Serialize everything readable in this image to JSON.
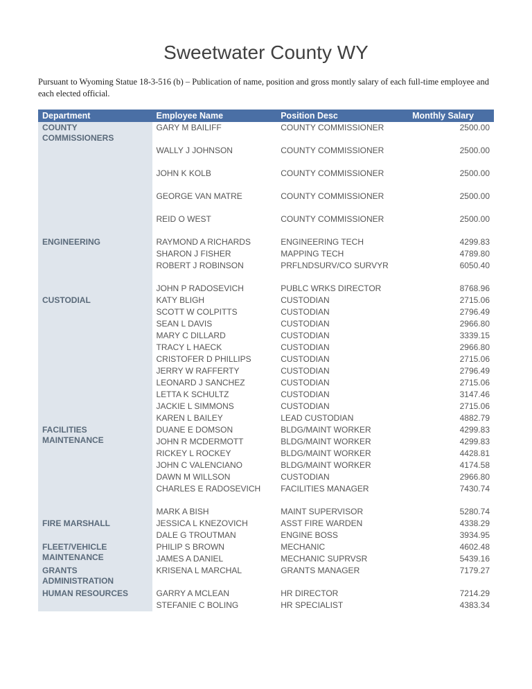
{
  "title": "Sweetwater County WY",
  "intro": "Pursuant to Wyoming Statue 18-3-516 (b) – Publication of name, position and gross montly salary of each full-time employee and each elected official.",
  "columns": [
    "Department",
    "Employee Name",
    "Position Desc",
    "Monthly Salary"
  ],
  "colors": {
    "header_bg": "#4a6fa5",
    "header_text": "#ffffff",
    "dept_bg": "#dfe5ec",
    "dept_text": "#5a6a7a",
    "body_text": "#555"
  },
  "rows": [
    {
      "dept": "COUNTY COMMISSIONERS",
      "name": "GARY M BAILIFF",
      "pos": "COUNTY COMMISSIONER",
      "sal": "2500.00",
      "deptspan": 10
    },
    {
      "spacer": true
    },
    {
      "name": "WALLY J JOHNSON",
      "pos": "COUNTY COMMISSIONER",
      "sal": "2500.00"
    },
    {
      "spacer": true
    },
    {
      "name": "JOHN K KOLB",
      "pos": "COUNTY COMMISSIONER",
      "sal": "2500.00"
    },
    {
      "spacer": true
    },
    {
      "name": "GEORGE  VAN MATRE",
      "pos": "COUNTY COMMISSIONER",
      "sal": "2500.00"
    },
    {
      "spacer": true
    },
    {
      "name": "REID O WEST",
      "pos": "COUNTY COMMISSIONER",
      "sal": "2500.00"
    },
    {
      "spacer": true
    },
    {
      "dept": "ENGINEERING",
      "name": "RAYMOND A RICHARDS",
      "pos": "ENGINEERING TECH",
      "sal": "4299.83",
      "deptspan": 4
    },
    {
      "name": "SHARON J FISHER",
      "pos": "MAPPING TECH",
      "sal": "4789.80"
    },
    {
      "name": "ROBERT J ROBINSON",
      "pos": "PRFLNDSURV/CO SURVYR",
      "sal": "6050.40"
    },
    {
      "spacer": true
    },
    {
      "dept": "",
      "name": "JOHN P RADOSEVICH",
      "pos": "PUBLC WRKS DIRECTOR",
      "sal": "8768.96",
      "deptspan": 1
    },
    {
      "dept": "CUSTODIAL",
      "name": "KATY  BLIGH",
      "pos": "CUSTODIAN",
      "sal": "2715.06",
      "deptspan": 11
    },
    {
      "name": "SCOTT W COLPITTS",
      "pos": "CUSTODIAN",
      "sal": "2796.49"
    },
    {
      "name": "SEAN L DAVIS",
      "pos": "CUSTODIAN",
      "sal": "2966.80"
    },
    {
      "name": "MARY C DILLARD",
      "pos": "CUSTODIAN",
      "sal": "3339.15"
    },
    {
      "name": "TRACY L HAECK",
      "pos": "CUSTODIAN",
      "sal": "2966.80"
    },
    {
      "name": "CRISTOFER D PHILLIPS",
      "pos": "CUSTODIAN",
      "sal": "2715.06"
    },
    {
      "name": "JERRY W RAFFERTY",
      "pos": "CUSTODIAN",
      "sal": "2796.49"
    },
    {
      "name": "LEONARD J SANCHEZ",
      "pos": "CUSTODIAN",
      "sal": "2715.06"
    },
    {
      "name": "LETTA K SCHULTZ",
      "pos": "CUSTODIAN",
      "sal": "3147.46"
    },
    {
      "name": "JACKIE L SIMMONS",
      "pos": "CUSTODIAN",
      "sal": "2715.06"
    },
    {
      "name": "KAREN L BAILEY",
      "pos": "LEAD CUSTODIAN",
      "sal": "4882.79"
    },
    {
      "dept": "FACILITIES MAINTENANCE",
      "name": "DUANE E DOMSON",
      "pos": "BLDG/MAINT WORKER",
      "sal": "4299.83",
      "deptspan": 8
    },
    {
      "name": "JOHN R MCDERMOTT",
      "pos": "BLDG/MAINT WORKER",
      "sal": "4299.83"
    },
    {
      "name": "RICKEY L ROCKEY",
      "pos": "BLDG/MAINT WORKER",
      "sal": "4428.81"
    },
    {
      "name": "JOHN C VALENCIANO",
      "pos": "BLDG/MAINT WORKER",
      "sal": "4174.58"
    },
    {
      "name": "DAWN M WILLSON",
      "pos": "CUSTODIAN",
      "sal": "2966.80"
    },
    {
      "name": "CHARLES E RADOSEVICH",
      "pos": "FACILITIES MANAGER",
      "sal": "7430.74"
    },
    {
      "spacer": true
    },
    {
      "name": "MARK A BISH",
      "pos": "MAINT SUPERVISOR",
      "sal": "5280.74"
    },
    {
      "dept": "FIRE MARSHALL",
      "name": "JESSICA L KNEZOVICH",
      "pos": "ASST FIRE WARDEN",
      "sal": "4338.29",
      "deptspan": 2
    },
    {
      "name": "DALE G TROUTMAN",
      "pos": "ENGINE BOSS",
      "sal": "3934.95"
    },
    {
      "dept": "FLEET/VEHICLE MAINTENANCE",
      "name": "PHILIP S BROWN",
      "pos": "MECHANIC",
      "sal": "4602.48",
      "deptspan": 2
    },
    {
      "name": "JAMES A DANIEL",
      "pos": "MECHANIC SUPRVSR",
      "sal": "5439.16"
    },
    {
      "dept": "GRANTS ADMINISTRATION",
      "name": "KRISENA L MARCHAL",
      "pos": "GRANTS MANAGER",
      "sal": "7179.27",
      "deptspan": 2
    },
    {
      "spacer": true
    },
    {
      "dept": "HUMAN RESOURCES",
      "name": "GARRY A MCLEAN",
      "pos": "HR DIRECTOR",
      "sal": "7214.29",
      "deptspan": 2
    },
    {
      "name": "STEFANIE C BOLING",
      "pos": "HR SPECIALIST",
      "sal": "4383.34"
    }
  ]
}
